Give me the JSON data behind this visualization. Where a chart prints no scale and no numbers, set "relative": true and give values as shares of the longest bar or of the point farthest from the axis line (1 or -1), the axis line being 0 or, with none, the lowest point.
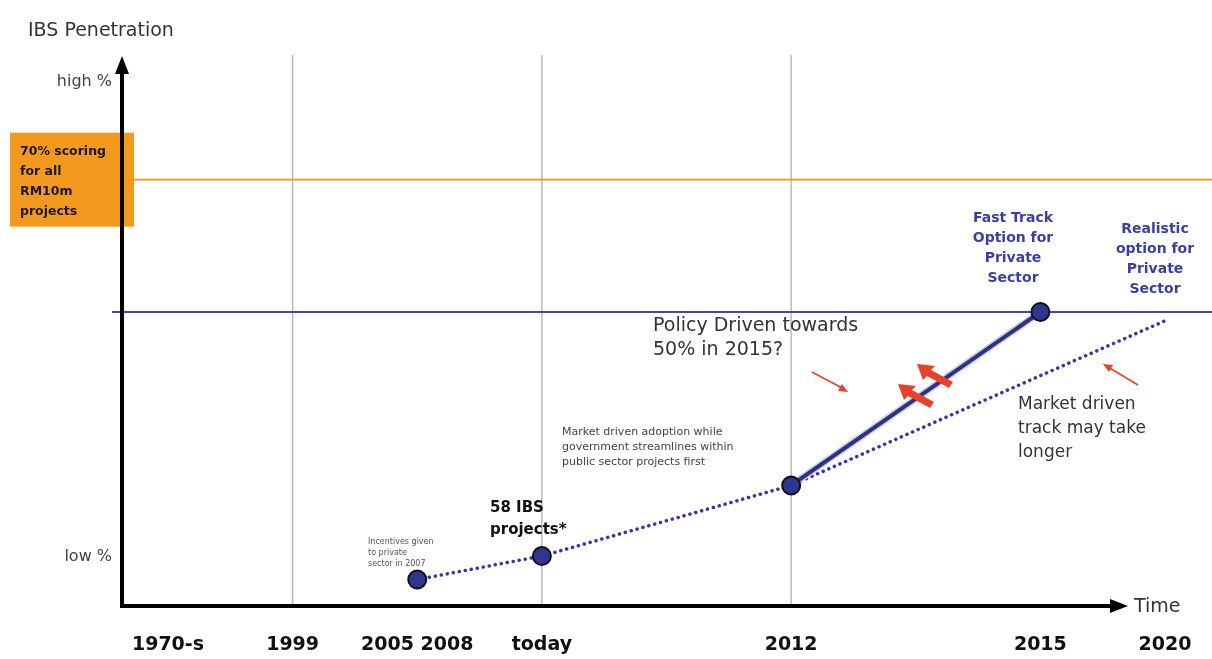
{
  "chart_data": {
    "type": "line",
    "relative": true,
    "title": "IBS Penetration",
    "xlabel": "Time",
    "categories": [
      "1970-s",
      "1999",
      "2005 2008",
      "today",
      null,
      "2012",
      null,
      "2015",
      "2020"
    ],
    "series": [
      {
        "values": [
          null,
          null,
          0.09,
          0.17,
          null,
          0.41,
          null,
          null,
          0.97
        ],
        "color": "#3b34a6",
        "line_style": "dotted",
        "marker": "none"
      },
      {
        "values": [
          null,
          null,
          null,
          null,
          null,
          0.41,
          null,
          1.0,
          null
        ],
        "color": "#2b3280",
        "line_style": "solid",
        "marker": "none"
      },
      {
        "type": "scatter",
        "values": [
          null,
          null,
          0.09,
          0.17,
          null,
          0.41,
          null,
          1.0,
          null
        ],
        "color": "#2e3592",
        "marker": "circle"
      }
    ],
    "ref_lines": [
      {
        "axis": "x",
        "value": "1999",
        "color": "#b8b8b8"
      },
      {
        "axis": "x",
        "value": "today",
        "color": "#b8b8b8"
      },
      {
        "axis": "x",
        "value": "2012",
        "color": "#b8b8b8"
      },
      {
        "axis": "y",
        "value": 1.45,
        "label": "70% scoring for all RM10m projects",
        "color": "#f39a1e"
      },
      {
        "axis": "y",
        "value": 1.0,
        "color": "#4a44b0"
      }
    ],
    "annotations": [
      "Fast Track Option for Private Sector",
      "Realistic option for Private Sector",
      "Policy Driven towards 50% in 2015?",
      "Market driven track may take longer",
      "Market driven adoption while government streamlines within public sector projects first",
      "58 IBS projects*",
      "Incentives given to private sector in 2007",
      "low %",
      "high %"
    ]
  }
}
